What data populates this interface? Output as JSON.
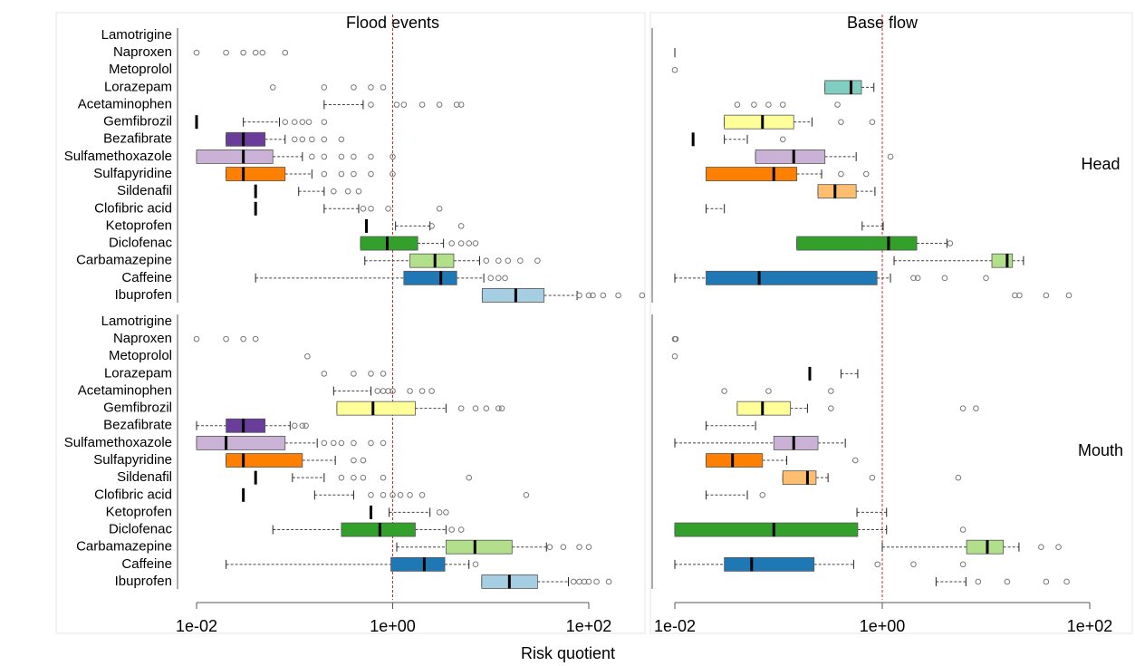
{
  "chart_data": {
    "type": "boxplot",
    "columns": [
      "Flood events",
      "Base flow"
    ],
    "rows": [
      "Head",
      "Mouth"
    ],
    "xlabel": "Risk quotient",
    "log_x": true,
    "xlim": [
      0.01,
      100
    ],
    "xticks": [
      {
        "value": 0.01,
        "label": "1e-02"
      },
      {
        "value": 1,
        "label": "1e+00"
      },
      {
        "value": 100,
        "label": "1e+02"
      }
    ],
    "reference_line": 1,
    "reference_color": "#d62728",
    "categories": [
      "Lamotrigine",
      "Naproxen",
      "Metoprolol",
      "Lorazepam",
      "Acetaminophen",
      "Gemfibrozil",
      "Bezafibrate",
      "Sulfamethoxazole",
      "Sulfapyridine",
      "Sildenafil",
      "Clofibric acid",
      "Ketoprofen",
      "Diclofenac",
      "Carbamazepine",
      "Caffeine",
      "Ibuprofen"
    ],
    "colors": [
      null,
      null,
      null,
      "#80cdc1",
      null,
      "#ffff99",
      "#6a3d9a",
      "#cab2d6",
      "#ff7f00",
      "#fdbf6f",
      null,
      null,
      "#33a02c",
      "#b2df8a",
      "#1f78b4",
      "#a6cee3"
    ],
    "panels": [
      [
        [
          {},
          {
            "outliers": [
              0.01,
              0.02,
              0.03,
              0.04,
              0.047,
              0.08
            ]
          },
          {},
          {
            "outliers": [
              0.06,
              0.2,
              0.4,
              0.6,
              0.8
            ]
          },
          {
            "min": 0.2,
            "max": 0.5,
            "outliers": [
              0.6,
              1.1,
              1.3,
              2,
              3,
              4.5,
              5
            ]
          },
          {
            "median": 0.01,
            "min": 0.03,
            "max": 0.07,
            "outliers": [
              0.08,
              0.1,
              0.12,
              0.14,
              0.2
            ]
          },
          {
            "min": 0.02,
            "q1": 0.02,
            "median": 0.03,
            "q3": 0.05,
            "max": 0.08,
            "outliers": [
              0.1,
              0.12,
              0.15,
              0.2,
              0.3
            ]
          },
          {
            "min": 0.01,
            "q1": 0.01,
            "median": 0.03,
            "q3": 0.06,
            "max": 0.12,
            "outliers": [
              0.15,
              0.2,
              0.3,
              0.4,
              0.6,
              1
            ]
          },
          {
            "min": 0.02,
            "q1": 0.02,
            "median": 0.03,
            "q3": 0.08,
            "max": 0.15,
            "outliers": [
              0.2,
              0.3,
              0.4,
              0.6,
              1
            ]
          },
          {
            "median": 0.04,
            "min": 0.11,
            "max": 0.2,
            "outliers": [
              0.25,
              0.35,
              0.45
            ]
          },
          {
            "median": 0.04,
            "min": 0.2,
            "max": 0.45,
            "outliers": [
              0.5,
              0.6,
              0.9,
              3
            ]
          },
          {
            "median": 0.54,
            "min": 1.07,
            "max": 2.4,
            "outliers": [
              2.5,
              5
            ]
          },
          {
            "min": 0.47,
            "q1": 0.47,
            "median": 0.88,
            "q3": 1.8,
            "max": 3.3,
            "outliers": [
              4,
              5,
              6,
              7
            ]
          },
          {
            "min": 0.52,
            "q1": 1.5,
            "median": 2.7,
            "q3": 4.2,
            "max": 7.7,
            "outliers": [
              9,
              12,
              15,
              20,
              30
            ]
          },
          {
            "min": 0.04,
            "q1": 1.3,
            "median": 3.1,
            "q3": 4.5,
            "max": 8.5,
            "outliers": [
              10,
              12,
              14
            ]
          },
          {
            "min": 8.2,
            "q1": 8.2,
            "median": 18,
            "q3": 35,
            "max": 76,
            "outliers": [
              80,
              100,
              110,
              140,
              200,
              350
            ]
          }
        ],
        [
          {},
          {
            "min": 0.01,
            "max": 0.01
          },
          {
            "outliers": [
              0.01
            ]
          },
          {
            "min": 0.28,
            "q1": 0.28,
            "median": 0.5,
            "q3": 0.63,
            "max": 0.83
          },
          {
            "outliers": [
              0.04,
              0.058,
              0.08,
              0.11,
              0.37
            ]
          },
          {
            "min": 0.03,
            "q1": 0.03,
            "median": 0.07,
            "q3": 0.14,
            "max": 0.21,
            "outliers": [
              0.4,
              0.8
            ]
          },
          {
            "median": 0.015,
            "min": 0.03,
            "max": 0.05,
            "outliers": [
              0.11
            ]
          },
          {
            "min": 0.06,
            "q1": 0.06,
            "median": 0.14,
            "q3": 0.28,
            "max": 0.56,
            "outliers": [
              1.2
            ]
          },
          {
            "min": 0.02,
            "q1": 0.02,
            "median": 0.09,
            "q3": 0.15,
            "max": 0.26,
            "outliers": [
              0.4,
              0.7
            ]
          },
          {
            "min": 0.24,
            "q1": 0.24,
            "median": 0.35,
            "q3": 0.56,
            "max": 0.85
          },
          {
            "min": 0.02,
            "max": 0.03
          },
          {
            "min": 0.64,
            "max": 1.02
          },
          {
            "min": 0.15,
            "q1": 0.15,
            "median": 1.15,
            "q3": 2.15,
            "max": 4.2,
            "outliers": [
              4.5
            ]
          },
          {
            "min": 1.3,
            "q1": 11.4,
            "median": 16,
            "q3": 18,
            "max": 23
          },
          {
            "min": 0.01,
            "q1": 0.02,
            "median": 0.065,
            "q3": 0.89,
            "max": 1.2,
            "outliers": [
              2,
              2.2,
              4,
              10
            ]
          },
          {
            "outliers": [
              19,
              21,
              38,
              63
            ]
          }
        ]
      ],
      [
        [
          {},
          {
            "outliers": [
              0.01,
              0.02,
              0.03,
              0.04
            ]
          },
          {
            "outliers": [
              0.135
            ]
          },
          {
            "outliers": [
              0.2,
              0.4,
              0.6,
              0.8
            ]
          },
          {
            "min": 0.25,
            "max": 0.6,
            "outliers": [
              0.7,
              0.8,
              0.9,
              1,
              1.5,
              2,
              2.5
            ]
          },
          {
            "min": 0.27,
            "q1": 0.27,
            "median": 0.63,
            "q3": 1.7,
            "max": 3.5,
            "outliers": [
              5,
              7,
              9,
              12,
              13
            ]
          },
          {
            "min": 0.01,
            "q1": 0.02,
            "median": 0.03,
            "q3": 0.05,
            "max": 0.09,
            "outliers": [
              0.1,
              0.12,
              0.13
            ]
          },
          {
            "min": 0.01,
            "q1": 0.01,
            "median": 0.02,
            "q3": 0.08,
            "max": 0.17,
            "outliers": [
              0.2,
              0.25,
              0.3,
              0.4,
              0.6,
              0.8
            ]
          },
          {
            "min": 0.02,
            "q1": 0.02,
            "median": 0.03,
            "q3": 0.12,
            "max": 0.26,
            "outliers": [
              0.4,
              0.5
            ]
          },
          {
            "median": 0.04,
            "min": 0.095,
            "max": 0.2,
            "outliers": [
              0.3,
              0.4,
              0.5,
              0.8,
              6
            ]
          },
          {
            "median": 0.03,
            "min": 0.16,
            "max": 0.4,
            "outliers": [
              0.6,
              0.8,
              1,
              1.2,
              1.5,
              2,
              23
            ]
          },
          {
            "median": 0.6,
            "min": 0.92,
            "max": 2.4,
            "outliers": [
              3,
              3.5
            ]
          },
          {
            "min": 0.06,
            "q1": 0.3,
            "median": 0.74,
            "q3": 1.7,
            "max": 3.5,
            "outliers": [
              4,
              5
            ]
          },
          {
            "min": 1.1,
            "q1": 3.5,
            "median": 6.9,
            "q3": 16.5,
            "max": 37,
            "outliers": [
              40,
              55,
              80,
              100
            ]
          },
          {
            "min": 0.02,
            "q1": 0.96,
            "median": 2.1,
            "q3": 3.4,
            "max": 6,
            "outliers": [
              7
            ]
          },
          {
            "min": 8.1,
            "q1": 8.1,
            "median": 15.5,
            "q3": 30,
            "max": 62,
            "outliers": [
              70,
              80,
              90,
              100,
              120,
              160
            ]
          }
        ],
        [
          {},
          {
            "outliers": [
              0.01,
              0.0102
            ]
          },
          {
            "outliers": [
              0.01
            ]
          },
          {
            "median": 0.2,
            "min": 0.4,
            "max": 0.58
          },
          {
            "outliers": [
              0.03,
              0.08,
              0.32
            ]
          },
          {
            "min": 0.04,
            "q1": 0.04,
            "median": 0.07,
            "q3": 0.13,
            "max": 0.19,
            "outliers": [
              0.32,
              6,
              8
            ]
          },
          {
            "min": 0.02,
            "max": 0.06
          },
          {
            "min": 0.01,
            "q1": 0.09,
            "median": 0.14,
            "q3": 0.24,
            "max": 0.44
          },
          {
            "min": 0.02,
            "q1": 0.02,
            "median": 0.036,
            "q3": 0.07,
            "max": 0.12,
            "outliers": [
              0.55
            ]
          },
          {
            "min": 0.11,
            "q1": 0.11,
            "median": 0.19,
            "q3": 0.23,
            "max": 0.3,
            "outliers": [
              0.8,
              5.4
            ]
          },
          {
            "min": 0.02,
            "max": 0.05,
            "outliers": [
              0.07
            ]
          },
          {
            "min": 0.57,
            "max": 1.1
          },
          {
            "min": 0.01,
            "q1": 0.01,
            "median": 0.09,
            "q3": 0.58,
            "max": 1.1,
            "outliers": [
              6
            ]
          },
          {
            "min": 1,
            "q1": 6.5,
            "median": 10.3,
            "q3": 14.7,
            "max": 20.8,
            "outliers": [
              34,
              50
            ]
          },
          {
            "min": 0.01,
            "q1": 0.03,
            "median": 0.055,
            "q3": 0.22,
            "max": 0.53,
            "outliers": [
              0.9,
              2,
              6
            ]
          },
          {
            "min": 3.3,
            "max": 6.4,
            "outliers": [
              8.4,
              16,
              38,
              60
            ]
          }
        ]
      ]
    ]
  }
}
